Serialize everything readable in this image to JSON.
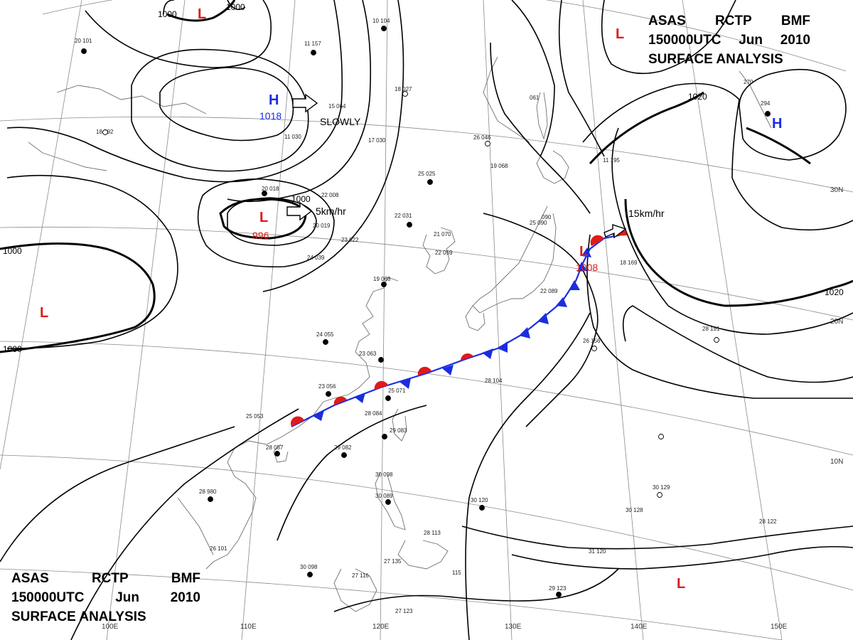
{
  "header": {
    "line1": [
      "ASAS",
      "RCTP",
      "BMF"
    ],
    "line2": [
      "150000UTC",
      "Jun",
      "2010"
    ],
    "line3": "SURFACE  ANALYSIS"
  },
  "graticule": {
    "lon_labels": [
      "110E",
      "120E",
      "130E",
      "140E",
      "150E"
    ],
    "lat_labels": [
      "30N",
      "20N",
      "10N"
    ],
    "partial_lon_label": "100E"
  },
  "isobars": {
    "labels": [
      "1000",
      "1000",
      "1000",
      "1000",
      "1000",
      "1020",
      "1020"
    ]
  },
  "pressure_systems": [
    {
      "type": "H",
      "pressure": "1018",
      "color": "#1a2ee0"
    },
    {
      "type": "L",
      "pressure": "996",
      "color": "#e01a1a"
    },
    {
      "type": "L",
      "pressure": "1008",
      "color": "#e01a1a"
    },
    {
      "type": "L",
      "pressure": "",
      "color": "#e01a1a"
    },
    {
      "type": "L",
      "pressure": "",
      "color": "#e01a1a"
    },
    {
      "type": "L",
      "pressure": "",
      "color": "#e01a1a"
    },
    {
      "type": "L",
      "pressure": "",
      "color": "#e01a1a"
    },
    {
      "type": "H",
      "pressure": "",
      "color": "#1a2ee0"
    }
  ],
  "motion_labels": [
    "SLOWLY",
    "5km/hr",
    "15km/hr"
  ],
  "station_obs": [
    "20 101",
    "11 157",
    "10 104",
    "18 027",
    "15 064",
    "18 092",
    "11 030",
    "17 030",
    "20 018",
    "22 008",
    "25 025",
    "26 046",
    "19 068",
    "061",
    "22 059",
    "20 019",
    "23 022",
    "22 031",
    "21 070",
    "24 039",
    "19 068",
    "24 055",
    "23 063",
    "23 056",
    "25 071",
    "28 084",
    "29 083",
    "29 082",
    "28 057",
    "25 053",
    "30 098",
    "30 089",
    "28 113",
    "27 135",
    "27 116",
    "27 123",
    "30 098",
    "26 101",
    "28 980",
    "30 120",
    "30 128",
    "30 129",
    "28 122",
    "31 120",
    "29 123",
    "28 191",
    "26 156",
    "18 169",
    "25 090",
    "22 089",
    "11 195",
    "28 104",
    "270",
    "294",
    "115",
    "090"
  ],
  "colors": {
    "isobar": "#000000",
    "graticule": "#8a8a8a",
    "coast": "#707070",
    "cold_front": "#1a2ee0",
    "warm_front": "#e01a1a",
    "high": "#1a2ee0",
    "low": "#e01a1a"
  }
}
